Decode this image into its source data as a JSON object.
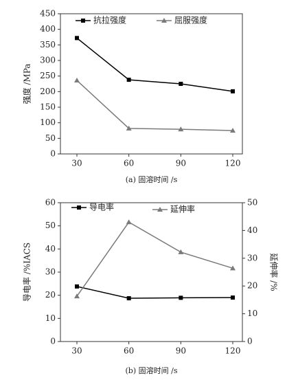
{
  "chart_data": [
    {
      "type": "line",
      "xlabel": "(a) 固溶时间 /s",
      "ylabel": "强度 /MPa",
      "categories": [
        "30",
        "60",
        "90",
        "120"
      ],
      "series": [
        {
          "name": "抗拉强度",
          "color": "#000000",
          "marker": "square",
          "values": [
            372,
            238,
            225,
            201
          ]
        },
        {
          "name": "屈服强度",
          "color": "#7a7a7a",
          "marker": "triangle",
          "values": [
            236,
            82,
            79,
            75
          ]
        }
      ],
      "ylim": [
        0,
        450
      ],
      "yticks": [
        0,
        50,
        100,
        150,
        200,
        250,
        300,
        350,
        400,
        450
      ],
      "grid": false,
      "legend": "top"
    },
    {
      "type": "line",
      "xlabel": "(b) 固溶时间 /s",
      "ylabel": "导电率 /%IACS",
      "y2label": "延伸率 /%",
      "categories": [
        "30",
        "60",
        "90",
        "120"
      ],
      "series": [
        {
          "name": "导电率",
          "color": "#000000",
          "marker": "square",
          "values": [
            23.8,
            18.7,
            18.9,
            19.0
          ]
        },
        {
          "name": "延伸率",
          "color": "#7a7a7a",
          "marker": "triangle",
          "axis": "y2",
          "values": [
            16.3,
            43.0,
            32.2,
            26.4
          ]
        }
      ],
      "ylim": [
        0,
        60
      ],
      "yticks": [
        0,
        10,
        20,
        30,
        40,
        50,
        60
      ],
      "y2lim": [
        0,
        50
      ],
      "y2ticks": [
        0,
        10,
        20,
        30,
        40,
        50
      ],
      "grid": false,
      "legend": "top"
    }
  ]
}
